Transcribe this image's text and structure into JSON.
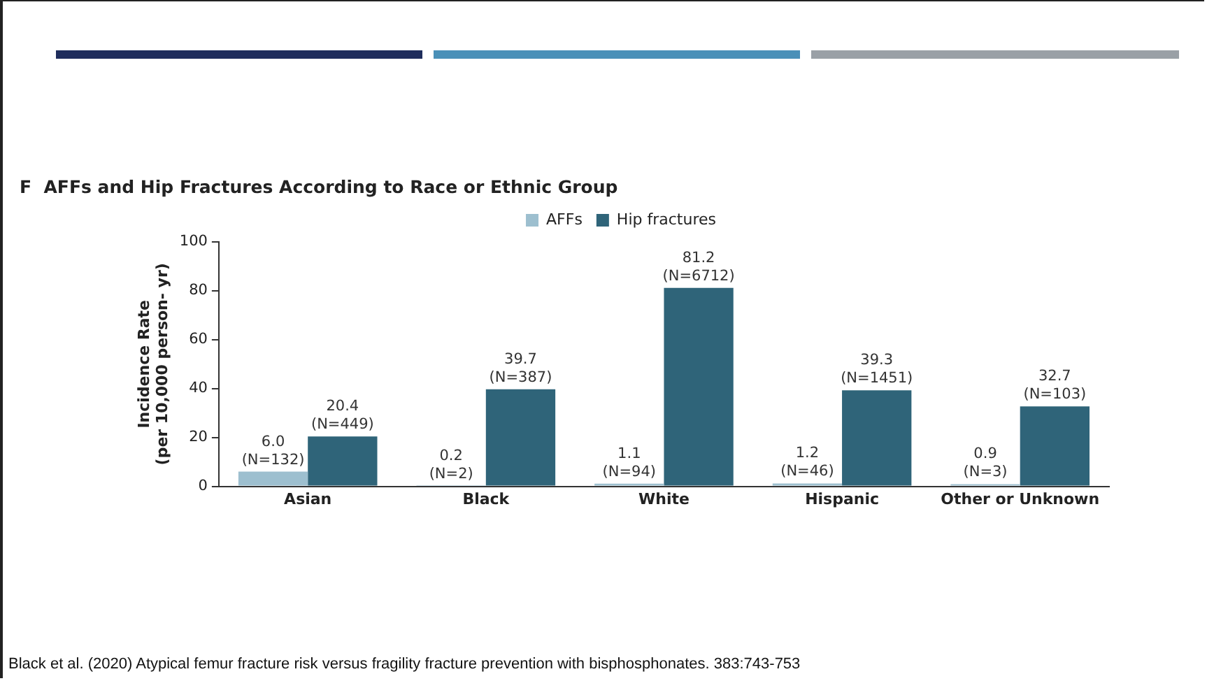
{
  "chart_data": {
    "type": "bar",
    "title": "F  AFFs and Hip Fractures According to Race or Ethnic Group",
    "ylabel": "Incidence Rate\n(per 10,000 person- yr)",
    "categories": [
      "Asian",
      "Black",
      "White",
      "Hispanic",
      "Other or Unknown"
    ],
    "series": [
      {
        "name": "AFFs",
        "color": "#9dbfcf",
        "values": [
          6.0,
          0.2,
          1.1,
          1.2,
          0.9
        ],
        "value_labels": [
          "6.0\n(N=132)",
          "0.2\n(N=2)",
          "1.1\n(N=94)",
          "1.2\n(N=46)",
          "0.9\n(N=3)"
        ]
      },
      {
        "name": "Hip fractures",
        "color": "#2f6479",
        "values": [
          20.4,
          39.7,
          81.2,
          39.3,
          32.7
        ],
        "value_labels": [
          "20.4\n(N=449)",
          "39.7\n(N=387)",
          "81.2\n(N=6712)",
          "39.3\n(N=1451)",
          "32.7\n(N=103)"
        ]
      }
    ],
    "ylim": [
      0,
      100
    ],
    "yticks": [
      0,
      20,
      40,
      60,
      80,
      100
    ],
    "grid": false,
    "legend": "top",
    "annotations": [
      "Black et al. (2020) Atypical femur fracture risk versus fragility fracture prevention with bisphosphonates. 383:743-753"
    ]
  }
}
